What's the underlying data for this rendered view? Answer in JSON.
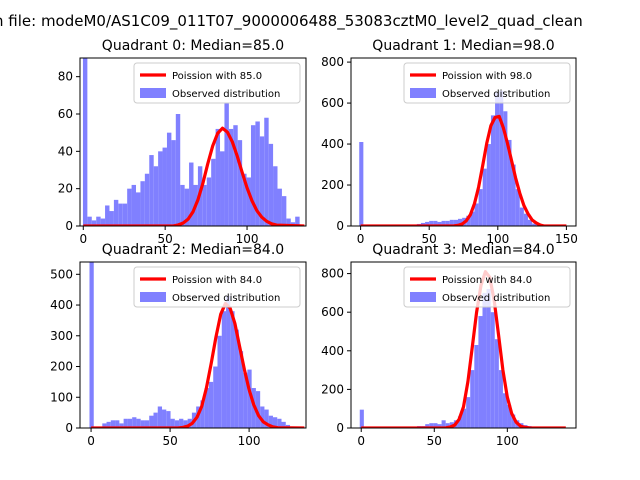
{
  "suptitle": "n file: modeM0/AS1C09_011T07_9000006488_53083cztM0_level2_quad_clean",
  "colors": {
    "observed": "#8080ff",
    "poisson": "#ff0000",
    "poisson_edge": "#ff9a9a",
    "axes": "#000000"
  },
  "chart_data": [
    {
      "type": "bar",
      "title": "Quadrant 0: Median=85.0",
      "median": 85.0,
      "xlim": [
        -2,
        136
      ],
      "ylim": [
        0,
        90
      ],
      "xticks": [
        0,
        50,
        100
      ],
      "yticks": [
        0,
        20,
        40,
        60,
        80
      ],
      "bin_width": 2.7,
      "bins_start": [
        -0.2,
        2.5,
        5.2,
        7.9,
        10.6,
        13.3,
        16,
        18.7,
        21.4,
        24.1,
        26.8,
        29.5,
        32.2,
        34.9,
        37.6,
        40.3,
        43,
        45.7,
        48.4,
        51.1,
        53.8,
        56.5,
        59.2,
        61.9,
        64.6,
        67.3,
        70,
        72.7,
        75.4,
        78.1,
        80.8,
        83.5,
        86.2,
        88.9,
        91.6,
        94.3,
        97,
        99.7,
        102.4,
        105.1,
        107.8,
        110.5,
        113.2,
        115.9,
        118.6,
        121.3,
        124,
        126.7,
        129.4
      ],
      "observed_counts": [
        90,
        5,
        3,
        5,
        4,
        11,
        8,
        14,
        12,
        12,
        20,
        22,
        18,
        24,
        28,
        38,
        32,
        40,
        42,
        50,
        46,
        60,
        22,
        20,
        34,
        22,
        32,
        22,
        26,
        36,
        52,
        40,
        66,
        52,
        54,
        46,
        28,
        26,
        54,
        56,
        48,
        58,
        44,
        32,
        20,
        16,
        4,
        2,
        5
      ],
      "poisson_x": [
        0,
        55,
        58,
        61,
        64,
        67,
        70,
        73,
        76,
        79,
        82,
        85,
        88,
        91,
        94,
        97,
        100,
        103,
        106,
        109,
        112,
        115,
        118,
        135
      ],
      "poisson_y": [
        0,
        0,
        0.6,
        1.6,
        3.7,
        7.6,
        14,
        22.7,
        33.2,
        42.9,
        49.6,
        52.4,
        50.3,
        45.1,
        37.5,
        28.8,
        20.5,
        13.5,
        8.2,
        4.7,
        2.5,
        1.2,
        0.5,
        0
      ],
      "legend": [
        {
          "label": "Poission with 85.0",
          "kind": "line"
        },
        {
          "label": "Observed distribution",
          "kind": "patch"
        }
      ]
    },
    {
      "type": "bar",
      "title": "Quadrant 1: Median=98.0",
      "median": 98.0,
      "xlim": [
        -7,
        157
      ],
      "ylim": [
        0,
        820
      ],
      "xticks": [
        0,
        50,
        100,
        150
      ],
      "yticks": [
        0,
        200,
        400,
        600,
        800
      ],
      "bin_width": 3,
      "bins_start": [
        -1,
        2,
        5,
        8,
        11,
        14,
        17,
        20,
        23,
        26,
        29,
        32,
        35,
        38,
        41,
        44,
        47,
        50,
        53,
        56,
        59,
        62,
        65,
        68,
        71,
        74,
        77,
        80,
        83,
        86,
        89,
        92,
        95,
        98,
        101,
        104,
        107,
        110,
        113,
        116,
        119,
        122,
        125,
        128,
        131,
        134,
        137,
        140,
        143,
        146
      ],
      "observed_counts": [
        410,
        5,
        5,
        5,
        5,
        5,
        5,
        5,
        5,
        5,
        5,
        5,
        5,
        5,
        10,
        15,
        20,
        25,
        25,
        20,
        25,
        25,
        30,
        30,
        35,
        40,
        50,
        70,
        110,
        180,
        280,
        400,
        540,
        650,
        660,
        560,
        420,
        300,
        180,
        90,
        60,
        30,
        12,
        8,
        5,
        4,
        3,
        2,
        2,
        5
      ],
      "poisson_x": [
        0,
        65,
        68,
        71,
        74,
        77,
        80,
        83,
        86,
        89,
        92,
        95,
        98,
        101,
        104,
        107,
        110,
        113,
        116,
        119,
        122,
        125,
        128,
        131,
        134,
        150
      ],
      "poisson_y": [
        0,
        0,
        1,
        3,
        10,
        25,
        55,
        110,
        190,
        295,
        405,
        490,
        530,
        535,
        480,
        405,
        320,
        235,
        160,
        100,
        60,
        30,
        15,
        5,
        0,
        0
      ],
      "legend": [
        {
          "label": "Poission with 98.0",
          "kind": "line"
        },
        {
          "label": "Observed distribution",
          "kind": "patch"
        }
      ]
    },
    {
      "type": "bar",
      "title": "Quadrant 2: Median=84.0",
      "median": 84.0,
      "xlim": [
        -7,
        136
      ],
      "ylim": [
        0,
        540
      ],
      "xticks": [
        0,
        50,
        100
      ],
      "yticks": [
        0,
        100,
        200,
        300,
        400,
        500
      ],
      "bin_width": 2.7,
      "bins_start": [
        -1,
        1.7,
        4.4,
        7.1,
        9.8,
        12.5,
        15.2,
        17.9,
        20.6,
        23.3,
        26,
        28.7,
        31.4,
        34.1,
        36.8,
        39.5,
        42.2,
        44.9,
        47.6,
        50.3,
        53,
        55.7,
        58.4,
        61.1,
        63.8,
        66.5,
        69.2,
        71.9,
        74.6,
        77.3,
        80,
        82.7,
        85.4,
        88.1,
        90.8,
        93.5,
        96.2,
        98.9,
        101.6,
        104.3,
        107,
        109.7,
        112.4,
        115.1,
        117.8,
        120.5,
        123.2,
        125.9
      ],
      "observed_counts": [
        540,
        5,
        5,
        15,
        20,
        25,
        25,
        15,
        30,
        30,
        35,
        30,
        25,
        25,
        40,
        50,
        70,
        60,
        55,
        30,
        25,
        30,
        25,
        30,
        50,
        70,
        90,
        130,
        150,
        200,
        300,
        380,
        430,
        380,
        320,
        250,
        180,
        190,
        130,
        120,
        70,
        60,
        40,
        35,
        30,
        20,
        10,
        5
      ],
      "poisson_x": [
        0,
        55,
        58,
        61,
        64,
        67,
        70,
        73,
        76,
        79,
        82,
        85,
        88,
        91,
        94,
        97,
        100,
        103,
        106,
        109,
        112,
        115,
        118,
        135
      ],
      "poisson_y": [
        0,
        0,
        2,
        6,
        15,
        35,
        70,
        130,
        210,
        295,
        370,
        405,
        390,
        340,
        265,
        190,
        125,
        75,
        40,
        20,
        10,
        4,
        1,
        0
      ],
      "legend": [
        {
          "label": "Poission with 84.0",
          "kind": "line"
        },
        {
          "label": "Observed distribution",
          "kind": "patch"
        }
      ]
    },
    {
      "type": "bar",
      "title": "Quadrant 3: Median=84.0",
      "median": 84.0,
      "xlim": [
        -7,
        147
      ],
      "ylim": [
        0,
        860
      ],
      "xticks": [
        0,
        50,
        100
      ],
      "yticks": [
        0,
        200,
        400,
        600,
        800
      ],
      "bin_width": 2.8,
      "bins_start": [
        -1,
        1.8,
        4.6,
        7.4,
        10.2,
        13,
        15.8,
        18.6,
        21.4,
        24.2,
        27,
        29.8,
        32.6,
        35.4,
        38.2,
        41,
        43.8,
        46.6,
        49.4,
        52.2,
        55,
        57.8,
        60.6,
        63.4,
        66.2,
        69,
        71.8,
        74.6,
        77.4,
        80.2,
        83,
        85.8,
        88.6,
        91.4,
        94.2,
        97,
        99.8,
        102.6,
        105.4,
        108.2,
        111,
        113.8,
        116.6,
        119.4,
        122.2,
        125,
        127.8,
        130.6,
        133.4,
        136.2
      ],
      "observed_counts": [
        95,
        5,
        5,
        5,
        5,
        5,
        5,
        5,
        5,
        5,
        5,
        5,
        5,
        5,
        10,
        10,
        20,
        25,
        25,
        20,
        40,
        25,
        30,
        40,
        60,
        100,
        160,
        300,
        430,
        580,
        700,
        720,
        600,
        460,
        300,
        180,
        120,
        70,
        40,
        25,
        15,
        10,
        5,
        5,
        5,
        4,
        3,
        2,
        2,
        2
      ],
      "poisson_x": [
        0,
        55,
        58,
        61,
        64,
        67,
        70,
        73,
        76,
        79,
        82,
        85,
        88,
        91,
        94,
        97,
        100,
        103,
        106,
        109,
        112,
        115,
        118,
        140
      ],
      "poisson_y": [
        0,
        0,
        1,
        5,
        15,
        45,
        110,
        240,
        420,
        600,
        740,
        810,
        780,
        660,
        480,
        300,
        160,
        75,
        30,
        10,
        3,
        1,
        0,
        0
      ],
      "legend": [
        {
          "label": "Poission with 84.0",
          "kind": "line"
        },
        {
          "label": "Observed distribution",
          "kind": "patch"
        }
      ]
    }
  ]
}
